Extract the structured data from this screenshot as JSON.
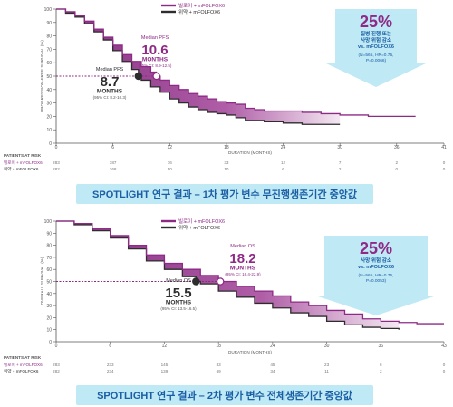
{
  "chart_data": [
    {
      "type": "line",
      "ylabel": "PROGRESSION-FREE SURVIVAL (%)",
      "xlabel": "DURATION (MONTHS)",
      "xlim": [
        0,
        41
      ],
      "ylim": [
        0,
        100
      ],
      "x_ticks": [
        0,
        6,
        12,
        18,
        24,
        30,
        36,
        41
      ],
      "y_ticks": [
        0,
        10,
        20,
        30,
        40,
        50,
        60,
        70,
        80,
        90,
        100
      ],
      "grid": false,
      "legend_position": "top-center",
      "series": [
        {
          "name": "빌로이 + mFOLFOX6",
          "color": "#8e2a86",
          "x": [
            0,
            1,
            2,
            3,
            4,
            5,
            6,
            7,
            8,
            9,
            10,
            10.6,
            11,
            12,
            13,
            14,
            15,
            16,
            17,
            18,
            19,
            20,
            21,
            22,
            24,
            26,
            28,
            30,
            33,
            35,
            38
          ],
          "y": [
            100,
            98,
            95,
            91,
            85,
            79,
            73,
            66,
            61,
            57,
            53,
            50,
            47,
            43,
            40,
            37,
            35,
            33,
            31,
            30,
            29,
            26,
            25,
            24,
            24,
            23,
            22,
            21,
            20,
            20,
            20
          ]
        },
        {
          "name": "위약 + mFOLFOX6",
          "color": "#2d2d2d",
          "x": [
            0,
            1,
            2,
            3,
            4,
            5,
            6,
            7,
            8,
            8.7,
            9,
            10,
            11,
            12,
            13,
            14,
            15,
            16,
            17,
            18,
            19,
            20,
            22,
            24,
            26,
            28,
            30
          ],
          "y": [
            100,
            97,
            94,
            89,
            83,
            77,
            69,
            61,
            55,
            50,
            47,
            42,
            38,
            33,
            30,
            27,
            25,
            23,
            22,
            21,
            19,
            17,
            16,
            15,
            14,
            14,
            14
          ]
        }
      ],
      "median_annotations": [
        {
          "label": "Median PFS",
          "value": "10.6",
          "unit": "MONTHS",
          "ci": "(95% CI: 8.9-12.5)",
          "x": 10.6,
          "y": 50,
          "color": "#8e2a86"
        },
        {
          "label": "Median PFS",
          "value": "8.7",
          "unit": "MONTHS",
          "ci": "(95% CI: 8.2-10.3)",
          "x": 8.7,
          "y": 50,
          "color": "#2d2d2d"
        }
      ],
      "risk_table": {
        "title": "PATIENTS AT RISK",
        "rows": [
          {
            "label": "빌로이 + mFOLFOX6",
            "color": "#8e2a86",
            "values": [
              "283",
              "187",
              "76",
              "33",
              "12",
              "7",
              "2",
              "0"
            ]
          },
          {
            "label": "위약 + mFOLFOX6",
            "color": "#2d2d2d",
            "values": [
              "282",
              "168",
              "50",
              "10",
              "6",
              "2",
              "0",
              "0"
            ]
          }
        ]
      },
      "callout": {
        "pct": "25%",
        "line1": "질병 진행 또는",
        "line2": "사망 위험 감소",
        "line3": "vs. mFOLFOX6",
        "stats1": "(N=565, HR=0.75,",
        "stats2": "P=0.0066)"
      },
      "banner": "SPOTLIGHT 연구 결과 – 1차 평가 변수 무진행생존기간 중앙값"
    },
    {
      "type": "line",
      "ylabel": "OVERALL SURVIVAL (%)",
      "xlabel": "DURATION (MONTHS)",
      "xlim": [
        0,
        43
      ],
      "ylim": [
        0,
        100
      ],
      "x_ticks": [
        0,
        6,
        12,
        18,
        24,
        30,
        36,
        43
      ],
      "y_ticks": [
        0,
        10,
        20,
        30,
        40,
        50,
        60,
        70,
        80,
        90,
        100
      ],
      "grid": false,
      "legend_position": "top-center",
      "series": [
        {
          "name": "빌로이 + mFOLFOX6",
          "color": "#8e2a86",
          "x": [
            0,
            2,
            4,
            6,
            8,
            10,
            12,
            14,
            16,
            18,
            18.2,
            20,
            22,
            24,
            26,
            28,
            30,
            32,
            34,
            36,
            38,
            40,
            43
          ],
          "y": [
            100,
            98,
            94,
            88,
            80,
            72,
            65,
            60,
            55,
            51,
            50,
            46,
            42,
            38,
            33,
            30,
            26,
            23,
            19,
            17,
            16,
            15,
            15
          ]
        },
        {
          "name": "위약 + mFOLFOX6",
          "color": "#2d2d2d",
          "x": [
            0,
            2,
            4,
            6,
            8,
            10,
            12,
            14,
            15.5,
            16,
            18,
            20,
            22,
            24,
            26,
            28,
            30,
            32,
            34,
            36,
            38
          ],
          "y": [
            100,
            97,
            92,
            86,
            77,
            67,
            60,
            54,
            50,
            48,
            42,
            37,
            32,
            28,
            24,
            21,
            17,
            14,
            12,
            11,
            10
          ]
        }
      ],
      "median_annotations": [
        {
          "label": "Median OS",
          "value": "18.2",
          "unit": "MONTHS",
          "ci": "(95% CI: 16.4-22.9)",
          "x": 18.2,
          "y": 50,
          "color": "#8e2a86"
        },
        {
          "label": "Median OS",
          "value": "15.5",
          "unit": "MONTHS",
          "ci": "(95% CI: 13.5-16.5)",
          "x": 15.5,
          "y": 50,
          "color": "#2d2d2d"
        }
      ],
      "risk_table": {
        "title": "PATIENTS AT RISK",
        "rows": [
          {
            "label": "빌로이 + mFOLFOX6",
            "color": "#8e2a86",
            "values": [
              "283",
              "233",
              "145",
              "83",
              "45",
              "23",
              "6",
              "0"
            ]
          },
          {
            "label": "위약 + mFOLFOX6",
            "color": "#2d2d2d",
            "values": [
              "282",
              "234",
              "139",
              "69",
              "34",
              "11",
              "2",
              "0"
            ]
          }
        ]
      },
      "callout": {
        "pct": "25%",
        "line1": "사망 위험 감소",
        "line2": "vs. mFOLFOX6",
        "line3": "",
        "stats1": "(N=565, HR=0.75,",
        "stats2": "P=0.0053)"
      },
      "banner": "SPOTLIGHT 연구 결과 – 2차 평가 변수 전체생존기간 중앙값"
    }
  ]
}
